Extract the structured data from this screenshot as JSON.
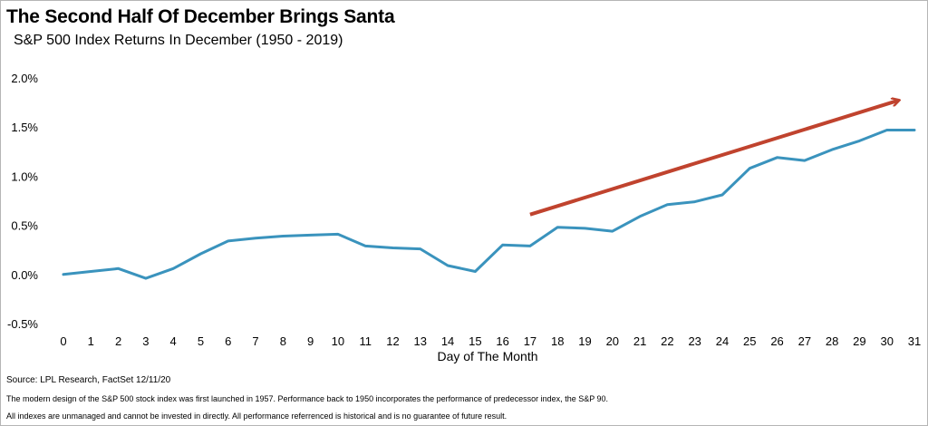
{
  "title": "The Second Half Of December Brings Santa",
  "subtitle": "S&P 500 Index Returns In December (1950 - 2019)",
  "footer": {
    "source": "Source: LPL Research, FactSet 12/11/20",
    "note1": "The modern design of the S&P 500 stock index was first launched in 1957. Performance back to 1950 incorporates the performance of predecessor index, the S&P 90.",
    "note2": "All indexes are unmanaged and cannot be invested in directly. All performance referrenced is historical and is no guarantee of future result."
  },
  "chart_data": {
    "type": "line",
    "title": "S&P 500 Index Returns In December (1950 - 2019)",
    "xlabel": "Day of The Month",
    "ylabel": "",
    "x": [
      0,
      1,
      2,
      3,
      4,
      5,
      6,
      7,
      8,
      9,
      10,
      11,
      12,
      13,
      14,
      15,
      16,
      17,
      18,
      19,
      20,
      21,
      22,
      23,
      24,
      25,
      26,
      27,
      28,
      29,
      30,
      31
    ],
    "series": [
      {
        "values": [
          0.0,
          0.03,
          0.06,
          -0.04,
          0.06,
          0.21,
          0.34,
          0.37,
          0.39,
          0.4,
          0.41,
          0.29,
          0.27,
          0.26,
          0.09,
          0.03,
          0.3,
          0.29,
          0.48,
          0.47,
          0.44,
          0.59,
          0.71,
          0.74,
          0.81,
          1.08,
          1.19,
          1.16,
          1.27,
          1.36,
          1.47,
          1.47
        ],
        "color": "#3a93bd"
      }
    ],
    "ylim": [
      -0.5,
      2.0
    ],
    "yticks": [
      "-0.5%",
      "0.0%",
      "0.5%",
      "1.0%",
      "1.5%",
      "2.0%"
    ],
    "ytick_values": [
      -0.5,
      0.0,
      0.5,
      1.0,
      1.5,
      2.0
    ],
    "grid": false,
    "annotations": [
      {
        "type": "arrow",
        "from": [
          17,
          0.61
        ],
        "to": [
          30.4,
          1.77
        ],
        "color": "#c0432e"
      }
    ]
  }
}
